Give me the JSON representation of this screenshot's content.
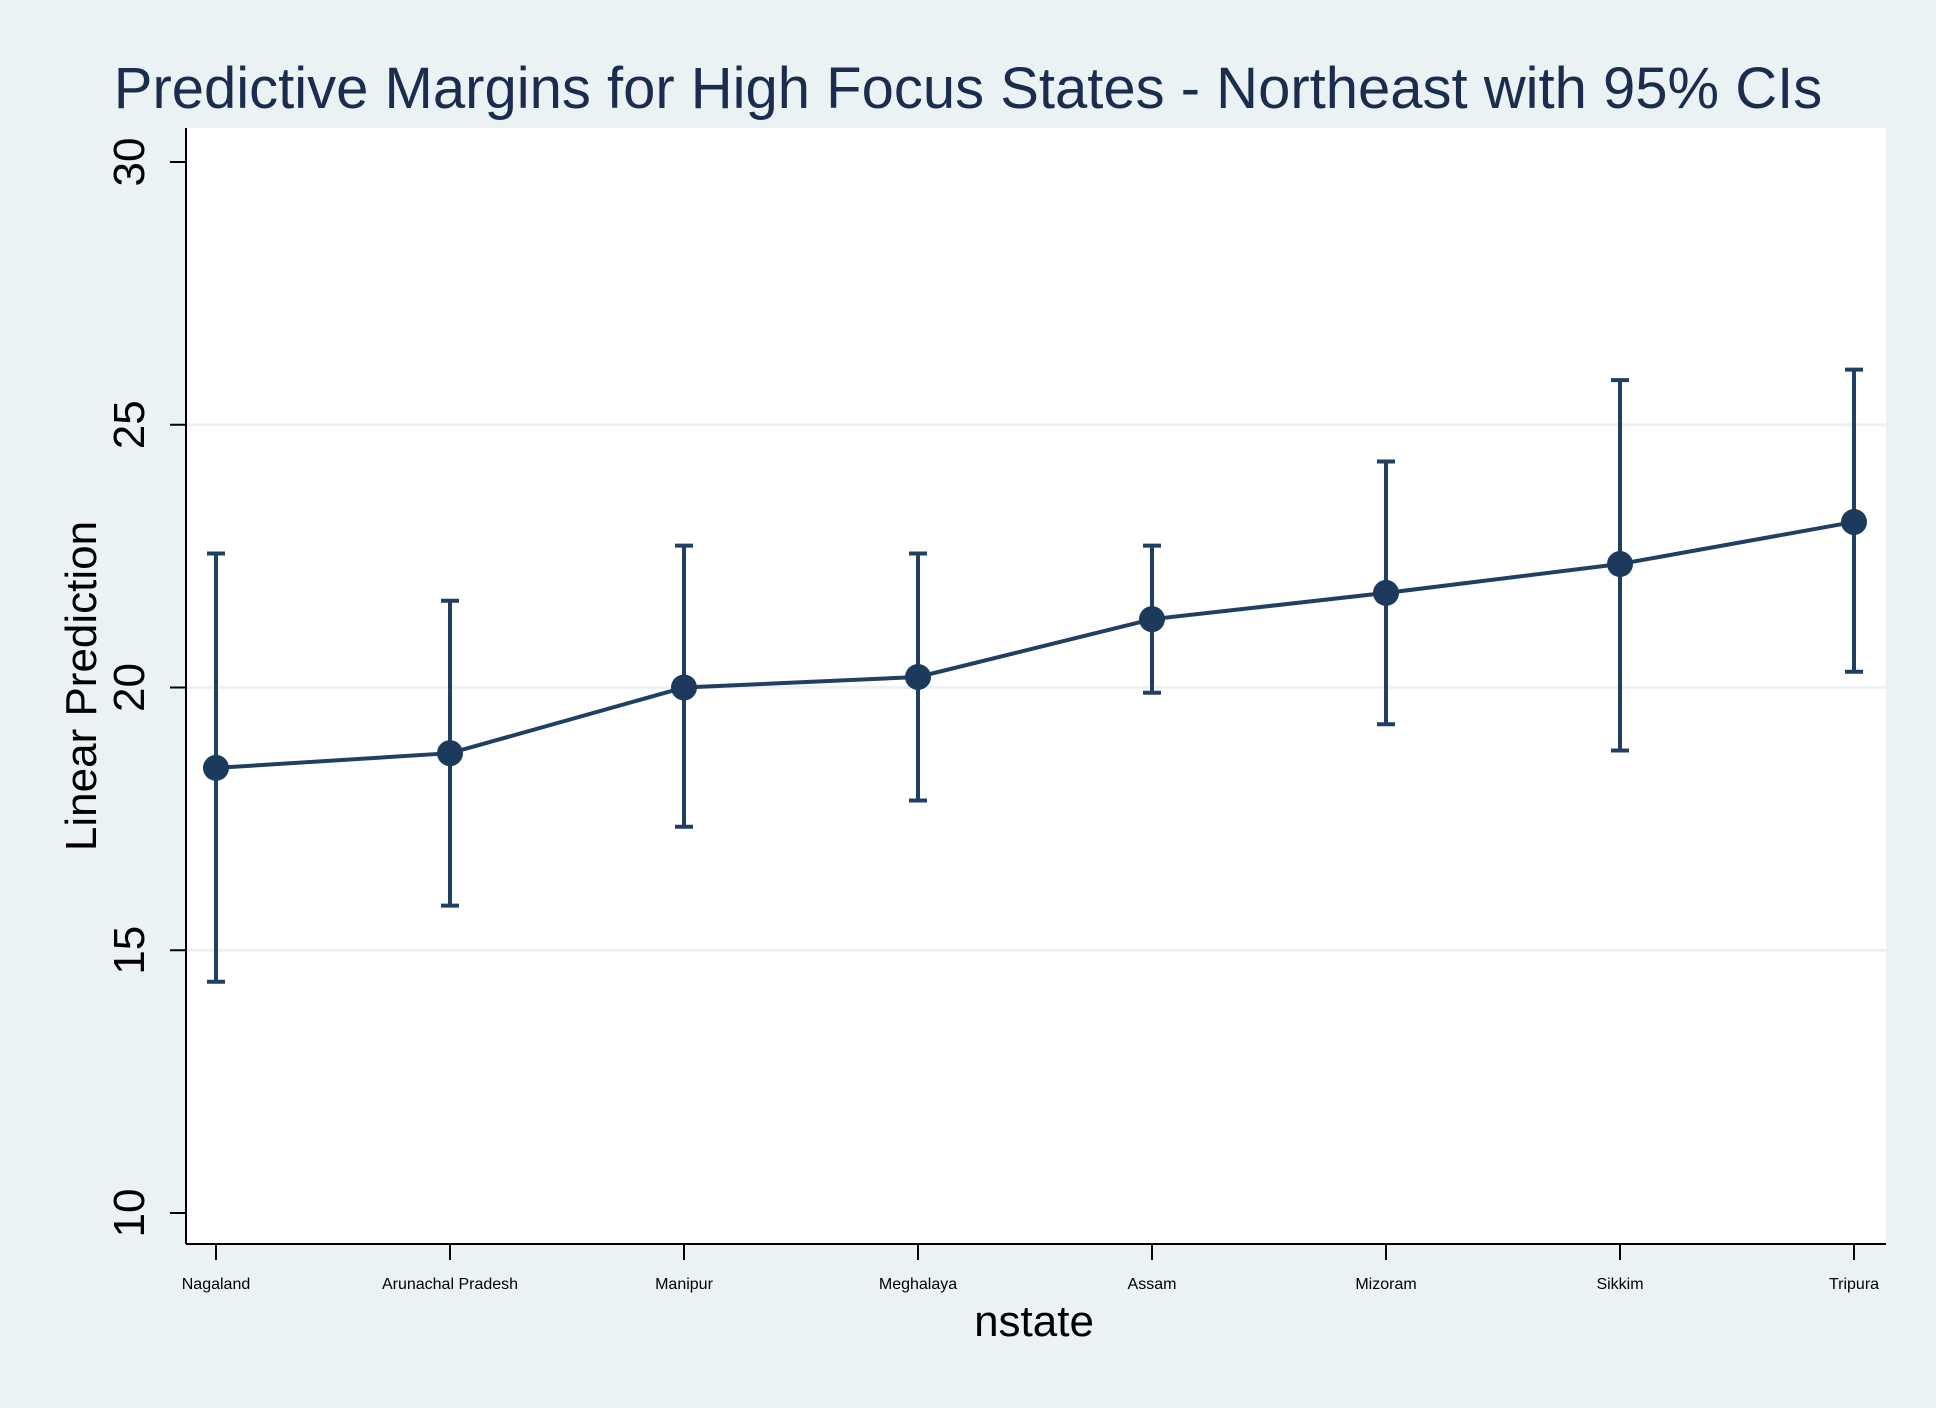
{
  "chart_data": {
    "type": "line",
    "title": "Predictive Margins for High Focus States - Northeast with 95% CIs",
    "xlabel": "nstate",
    "ylabel": "Linear Prediction",
    "categories": [
      "Nagaland",
      "Arunachal Pradesh",
      "Manipur",
      "Meghalaya",
      "Assam",
      "Mizoram",
      "Sikkim",
      "Tripura"
    ],
    "series": [
      {
        "values": [
          18.47,
          18.75,
          20.0,
          20.2,
          21.3,
          21.8,
          22.35,
          23.15
        ],
        "ci_lower": [
          14.4,
          15.85,
          17.35,
          17.85,
          19.9,
          19.3,
          18.8,
          20.3
        ],
        "ci_upper": [
          22.55,
          21.65,
          22.7,
          22.55,
          22.7,
          24.3,
          25.85,
          26.05
        ]
      }
    ],
    "ylim": [
      10,
      30
    ],
    "yticks": [
      10,
      15,
      20,
      25,
      30
    ],
    "grid": true,
    "colors": {
      "line": "#1f3f63",
      "marker": "#1b3a5c",
      "plot_background": "#ffffff",
      "outer_background": "#eaf2f3",
      "gridline": "#eaf2f3",
      "title": "#1a2d4f"
    }
  }
}
